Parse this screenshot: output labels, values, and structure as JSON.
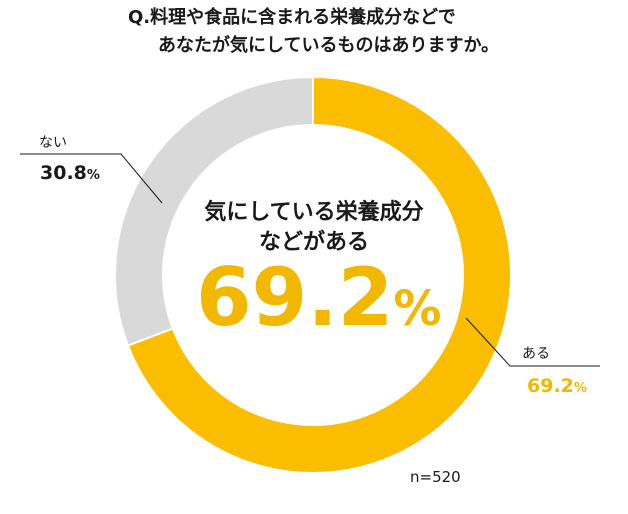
{
  "title": {
    "line1": "Q.料理や食品に含まれる栄養成分などで",
    "line2": "あなたが気にしているものはありますか。"
  },
  "center": {
    "line1": "気にしている栄養成分",
    "line2": "などがある",
    "value": "69.2",
    "unit": "%"
  },
  "sample_size": "n=520",
  "colors": {
    "aru": "#fbbd00",
    "nai": "#d9d9d9",
    "accent_text": "#f2b800"
  },
  "chart_data": {
    "type": "pie",
    "donut": true,
    "title": "Q.料理や食品に含まれる栄養成分などで あなたが気にしているものはありますか。",
    "slices": [
      {
        "label": "ある",
        "value": 69.2,
        "display": "69.2",
        "unit": "%"
      },
      {
        "label": "ない",
        "value": 30.8,
        "display": "30.8",
        "unit": "%"
      }
    ],
    "start": "top",
    "direction": "clockwise"
  }
}
